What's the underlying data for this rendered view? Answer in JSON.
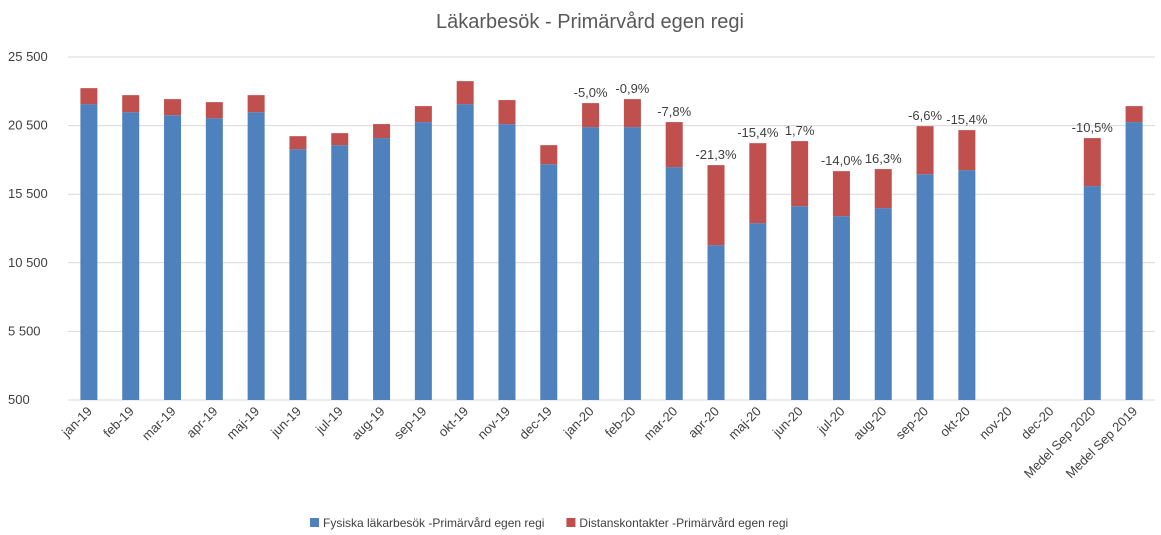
{
  "chart_data": {
    "type": "stacked_bar",
    "title": "Läkarbesök - Primärvård egen regi",
    "categories": [
      "jan-19",
      "feb-19",
      "mar-19",
      "apr-19",
      "maj-19",
      "jun-19",
      "jul-19",
      "aug-19",
      "sep-19",
      "okt-19",
      "nov-19",
      "dec-19",
      "jan-20",
      "feb-20",
      "mar-20",
      "apr-20",
      "maj-20",
      "jun-20",
      "jul-20",
      "aug-20",
      "sep-20",
      "okt-20",
      "nov-20",
      "dec-20",
      "Medel Sep  2020",
      "Medel Sep 2019"
    ],
    "series": [
      {
        "name": "Fysiska läkarbesök -Primärvård egen regi",
        "color": "#4f81bd",
        "values": [
          21565,
          20980,
          20760,
          20545,
          20980,
          18285,
          18575,
          19090,
          20255,
          21565,
          20110,
          17190,
          19890,
          19890,
          16975,
          11290,
          12890,
          14130,
          13400,
          13985,
          16460,
          16755,
          null,
          null,
          15590,
          20255
        ]
      },
      {
        "name": "Distanskontakter -Primärvård egen regi",
        "color": "#c0504d",
        "values": [
          1165,
          1240,
          1170,
          1165,
          1240,
          945,
          875,
          1020,
          1165,
          1675,
          1750,
          1385,
          1750,
          2040,
          3280,
          5830,
          5830,
          4740,
          3280,
          2845,
          3500,
          2915,
          null,
          null,
          3500,
          1165
        ]
      }
    ],
    "annotations": [
      null,
      null,
      null,
      null,
      null,
      null,
      null,
      null,
      null,
      null,
      null,
      null,
      "-5,0%",
      "-0,9%",
      "-7,8%",
      "-21,3%",
      "-15,4%",
      "1,7%",
      "-14,0%",
      "16,3%",
      "-6,6%",
      "-15,4%",
      null,
      null,
      "-10,5%",
      null
    ],
    "ylim": [
      500,
      25500
    ],
    "yticks": [
      {
        "value": 500,
        "label": "500"
      },
      {
        "value": 5500,
        "label": "5 500"
      },
      {
        "value": 10500,
        "label": "10 500"
      },
      {
        "value": 15500,
        "label": "15 500"
      },
      {
        "value": 20500,
        "label": "20 500"
      },
      {
        "value": 25500,
        "label": "25 500"
      }
    ],
    "grid": true,
    "legend": "bottom"
  }
}
